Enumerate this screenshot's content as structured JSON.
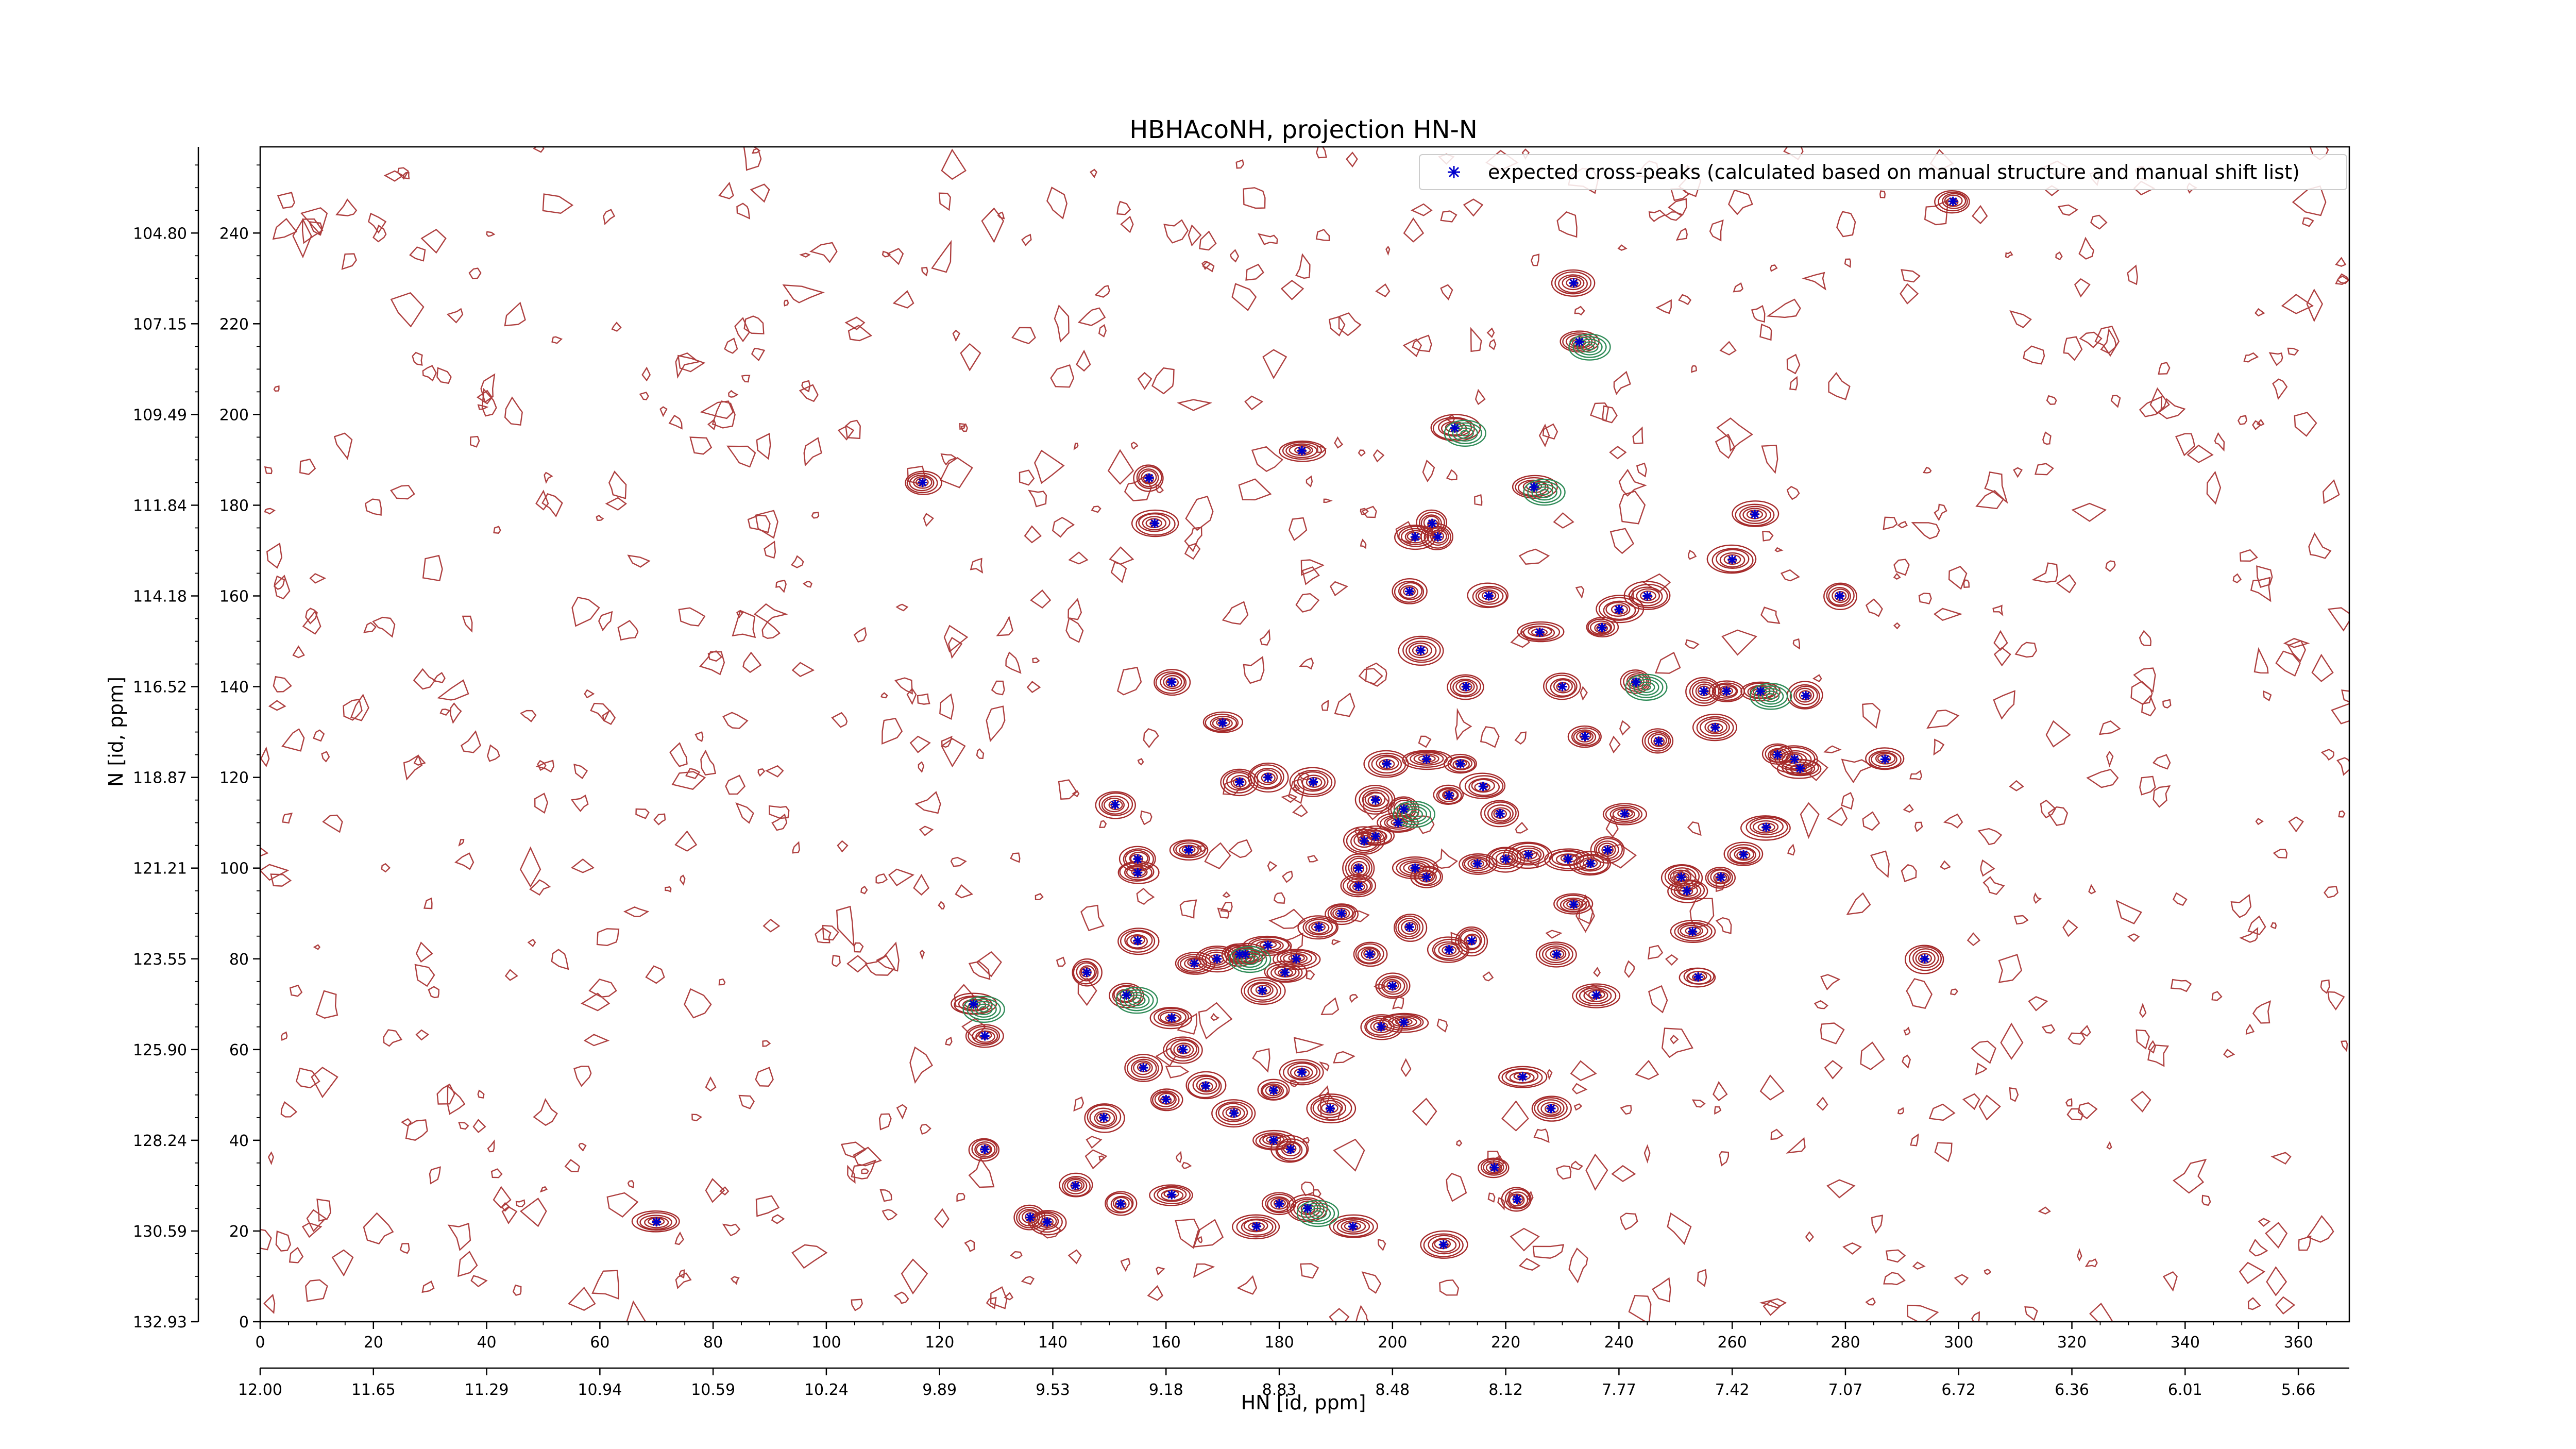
{
  "chart_data": {
    "type": "scatter",
    "title": "HBHAcoNH, projection HN-N",
    "xlabel": "HN [id, ppm]",
    "ylabel": "N [id, ppm]",
    "xlim": [
      0,
      369
    ],
    "ylim": [
      0,
      259
    ],
    "x_index_ticks": [
      0,
      20,
      40,
      60,
      80,
      100,
      120,
      140,
      160,
      180,
      200,
      220,
      240,
      260,
      280,
      300,
      320,
      340,
      360
    ],
    "x_ppm_ticks": [
      "12.00",
      "11.65",
      "11.29",
      "10.94",
      "10.59",
      "10.24",
      "9.89",
      "9.53",
      "9.18",
      "8.83",
      "8.48",
      "8.12",
      "7.77",
      "7.42",
      "7.07",
      "6.72",
      "6.36",
      "6.01",
      "5.66"
    ],
    "y_index_ticks": [
      0,
      20,
      40,
      60,
      80,
      100,
      120,
      140,
      160,
      180,
      200,
      220,
      240
    ],
    "y_ppm_ticks": [
      "132.93",
      "130.59",
      "128.24",
      "125.90",
      "123.55",
      "121.21",
      "118.87",
      "116.52",
      "114.18",
      "111.84",
      "109.49",
      "107.15",
      "104.80"
    ],
    "legend": {
      "label": "expected cross-peaks (calculated based on manual structure and manual shift list)",
      "position": "top-right"
    },
    "colors": {
      "peak_marker": "#0000cc",
      "positive_contour": "#a52a2a",
      "negative_contour": "#2e8b57"
    },
    "series": [
      {
        "name": "expected cross-peaks (calculated based on manual structure and manual shift list)",
        "x": [
          70,
          117,
          126,
          128,
          128,
          136,
          139,
          144,
          146,
          149,
          151,
          152,
          153,
          155,
          155,
          155,
          156,
          157,
          158,
          160,
          161,
          161,
          161,
          163,
          164,
          165,
          167,
          169,
          170,
          172,
          173,
          173,
          174,
          176,
          177,
          178,
          178,
          179,
          179,
          180,
          181,
          182,
          183,
          184,
          184,
          185,
          186,
          187,
          189,
          191,
          193,
          194,
          194,
          195,
          196,
          197,
          197,
          198,
          199,
          200,
          201,
          202,
          202,
          203,
          203,
          204,
          204,
          205,
          206,
          206,
          207,
          208,
          209,
          210,
          210,
          211,
          212,
          213,
          214,
          215,
          216,
          217,
          218,
          219,
          220,
          222,
          223,
          224,
          225,
          226,
          228,
          229,
          230,
          231,
          232,
          232,
          233,
          234,
          235,
          236,
          237,
          238,
          240,
          241,
          243,
          245,
          247,
          251,
          252,
          253,
          254,
          255,
          257,
          258,
          259,
          260,
          262,
          264,
          265,
          266,
          268,
          271,
          272,
          273,
          279,
          287,
          294,
          299
        ],
        "y": [
          22,
          185,
          70,
          63,
          38,
          23,
          22,
          30,
          77,
          45,
          114,
          26,
          72,
          84,
          102,
          99,
          56,
          186,
          176,
          49,
          67,
          141,
          28,
          60,
          104,
          79,
          52,
          80,
          132,
          46,
          81,
          119,
          81,
          21,
          73,
          120,
          83,
          40,
          51,
          26,
          77,
          38,
          80,
          55,
          192,
          25,
          119,
          87,
          47,
          90,
          21,
          96,
          100,
          106,
          81,
          115,
          107,
          65,
          123,
          74,
          110,
          66,
          113,
          87,
          161,
          100,
          173,
          148,
          124,
          98,
          176,
          173,
          17,
          116,
          82,
          197,
          123,
          140,
          84,
          101,
          118,
          160,
          34,
          112,
          102,
          27,
          54,
          103,
          184,
          152,
          47,
          81,
          140,
          102,
          229,
          92,
          216,
          129,
          101,
          72,
          153,
          104,
          157,
          112,
          141,
          160,
          128,
          98,
          95,
          86,
          76,
          139,
          131,
          98,
          139,
          168,
          103,
          178,
          139,
          109,
          125,
          124,
          122,
          138,
          160,
          124,
          80,
          247
        ]
      }
    ]
  }
}
